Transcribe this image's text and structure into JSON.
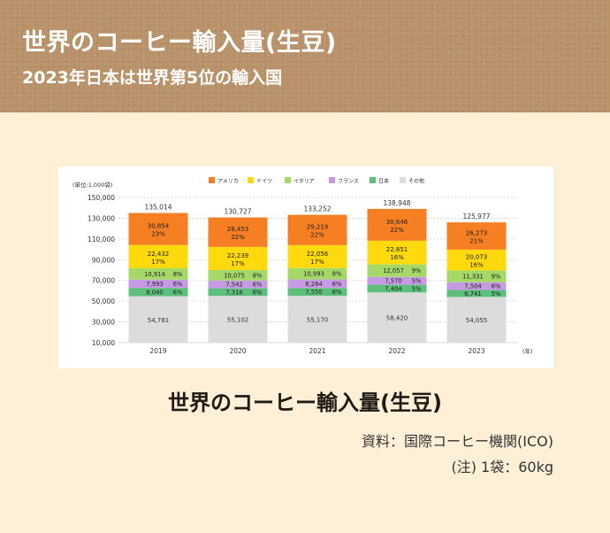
{
  "header": {
    "title": "世界のコーヒー輸入量(生豆)",
    "subtitle": "2023年日本は世界第5位の輸入国"
  },
  "caption": "世界のコーヒー輸入量(生豆)",
  "source": "資料：国際コーヒー機関(ICO)",
  "note": "(注) 1袋：60kg",
  "chart_data": {
    "type": "bar",
    "stacked": true,
    "title": "",
    "unit_label": "(単位:1,000袋)",
    "x_unit": "(年)",
    "categories": [
      "2019",
      "2020",
      "2021",
      "2022",
      "2023"
    ],
    "ylim": [
      10000,
      150000
    ],
    "yticks": [
      "10,000",
      "30,000",
      "50,000",
      "70,000",
      "90,000",
      "110,000",
      "130,000",
      "150,000"
    ],
    "ytick_values": [
      10000,
      30000,
      50000,
      70000,
      90000,
      110000,
      130000,
      150000
    ],
    "grid": true,
    "legend_position": "top",
    "totals": [
      "135,014",
      "130,727",
      "133,252",
      "138,948",
      "125,977"
    ],
    "series": [
      {
        "name": "その他",
        "color": "#dcdcdc",
        "values": [
          54781,
          55102,
          55170,
          58420,
          54055
        ],
        "labels": [
          "54,781",
          "55,102",
          "55,170",
          "58,420",
          "54,055"
        ],
        "pcts": [
          "",
          "",
          "",
          "",
          ""
        ]
      },
      {
        "name": "日本",
        "color": "#5cc07a",
        "values": [
          8040,
          7316,
          7550,
          7404,
          6741
        ],
        "labels": [
          "8,040",
          "7,316",
          "7,550",
          "7,404",
          "6,741"
        ],
        "pcts": [
          "6%",
          "6%",
          "6%",
          "5%",
          "5%"
        ]
      },
      {
        "name": "フランス",
        "color": "#c79be3",
        "values": [
          7993,
          7542,
          8264,
          7570,
          7504
        ],
        "labels": [
          "7,993",
          "7,542",
          "8,264",
          "7,570",
          "7,504"
        ],
        "pcts": [
          "6%",
          "6%",
          "6%",
          "5%",
          "6%"
        ]
      },
      {
        "name": "イタリア",
        "color": "#a5d867",
        "values": [
          10914,
          10075,
          10993,
          12057,
          11331
        ],
        "labels": [
          "10,914",
          "10,075",
          "10,993",
          "12,057",
          "11,331"
        ],
        "pcts": [
          "8%",
          "8%",
          "8%",
          "9%",
          "9%"
        ]
      },
      {
        "name": "ドイツ",
        "color": "#fdd90e",
        "values": [
          22432,
          22239,
          22056,
          22851,
          20073
        ],
        "labels": [
          "22,432",
          "22,239",
          "22,056",
          "22,851",
          "20,073"
        ],
        "pcts": [
          "17%",
          "17%",
          "17%",
          "16%",
          "16%"
        ]
      },
      {
        "name": "アメリカ",
        "color": "#f57f22",
        "values": [
          30854,
          28453,
          29219,
          30646,
          26273
        ],
        "labels": [
          "30,854",
          "28,453",
          "29,219",
          "30,646",
          "26,273"
        ],
        "pcts": [
          "23%",
          "22%",
          "22%",
          "22%",
          "21%"
        ]
      }
    ],
    "legend_order": [
      "アメリカ",
      "ドイツ",
      "イタリア",
      "フランス",
      "日本",
      "その他"
    ]
  }
}
